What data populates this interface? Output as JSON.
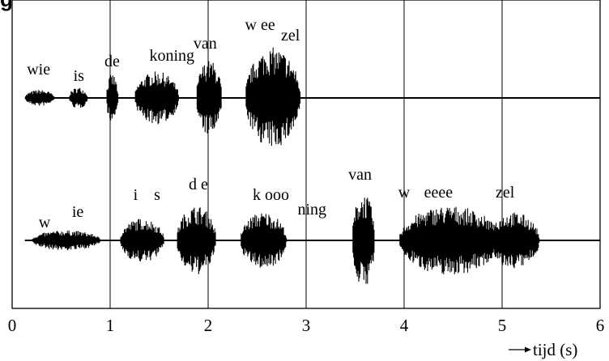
{
  "corner_text": "g",
  "chart_data": {
    "type": "waveform",
    "title": "",
    "xlabel": "tijd (s)",
    "ylabel": "",
    "xlim": [
      0,
      6
    ],
    "x_ticks": [
      "0",
      "1",
      "2",
      "3",
      "4",
      "5",
      "6"
    ],
    "grid": "vertical lines at every second",
    "colors": {
      "wave": "#000000",
      "frame": "#000000",
      "background": "#ffffff"
    },
    "series": [
      {
        "name": "",
        "words": [
          {
            "text": "wie",
            "t": 0.27
          },
          {
            "text": "is",
            "t": 0.68
          },
          {
            "text": "de",
            "t": 1.02
          },
          {
            "text": "koning",
            "t": 1.63
          },
          {
            "text": "van",
            "t": 1.97
          },
          {
            "text": "w ee",
            "t": 2.53
          },
          {
            "text": "zel",
            "t": 2.84
          }
        ],
        "segments": [
          {
            "start": 0.13,
            "end": 0.43,
            "amp": 0.13
          },
          {
            "start": 0.58,
            "end": 0.77,
            "amp": 0.17
          },
          {
            "start": 0.96,
            "end": 1.08,
            "amp": 0.38
          },
          {
            "start": 1.25,
            "end": 1.7,
            "amp": 0.42
          },
          {
            "start": 1.88,
            "end": 2.14,
            "amp": 0.6
          },
          {
            "start": 2.38,
            "end": 2.94,
            "amp": 0.8
          }
        ]
      },
      {
        "name": "",
        "words": [
          {
            "text": "w",
            "t": 0.33
          },
          {
            "text": "ie",
            "t": 0.67
          },
          {
            "text": "i",
            "t": 1.26
          },
          {
            "text": "s",
            "t": 1.48
          },
          {
            "text": "d e",
            "t": 1.9
          },
          {
            "text": "k ooo",
            "t": 2.64
          },
          {
            "text": "ning",
            "t": 3.06
          },
          {
            "text": "van",
            "t": 3.55
          },
          {
            "text": "w",
            "t": 4.0
          },
          {
            "text": "eeee",
            "t": 4.35
          },
          {
            "text": "zel",
            "t": 5.03
          }
        ],
        "segments": [
          {
            "start": 0.2,
            "end": 0.9,
            "amp": 0.16
          },
          {
            "start": 1.1,
            "end": 1.55,
            "amp": 0.35
          },
          {
            "start": 1.68,
            "end": 2.08,
            "amp": 0.55
          },
          {
            "start": 2.33,
            "end": 2.8,
            "amp": 0.45
          },
          {
            "start": 3.47,
            "end": 3.7,
            "amp": 0.75
          },
          {
            "start": 3.95,
            "end": 4.98,
            "amp": 0.55
          },
          {
            "start": 4.85,
            "end": 5.38,
            "amp": 0.45
          }
        ]
      }
    ]
  }
}
